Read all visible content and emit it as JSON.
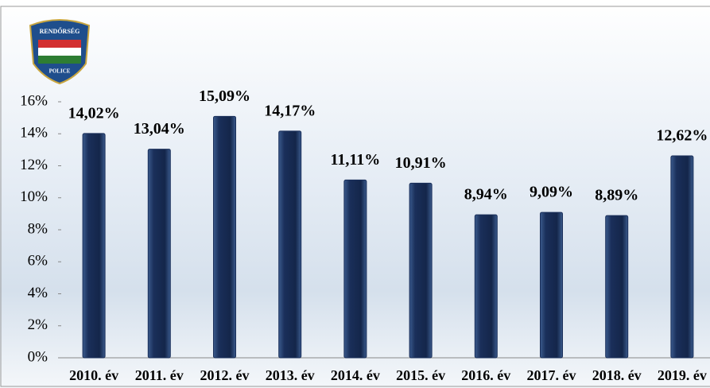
{
  "logo": {
    "top": "RENDŐRSÉG",
    "bottom": "POLICE"
  },
  "chart_data": {
    "type": "bar",
    "categories": [
      "2010. év",
      "2011. év",
      "2012. év",
      "2013. év",
      "2014. év",
      "2015. év",
      "2016. év",
      "2017. év",
      "2018. év",
      "2019. év"
    ],
    "values": [
      14.02,
      13.04,
      15.09,
      14.17,
      11.11,
      10.91,
      8.94,
      9.09,
      8.89,
      12.62
    ],
    "value_labels": [
      "14,02%",
      "13,04%",
      "15,09%",
      "14,17%",
      "11,11%",
      "10,91%",
      "8,94%",
      "9,09%",
      "8,89%",
      "12,62%"
    ],
    "color": "#1a2f5a",
    "ylim": [
      0,
      16
    ],
    "yticks": [
      {
        "value": 0,
        "label": "0%"
      },
      {
        "value": 2,
        "label": "2%"
      },
      {
        "value": 4,
        "label": "4%"
      },
      {
        "value": 6,
        "label": "6%"
      },
      {
        "value": 8,
        "label": "8%"
      },
      {
        "value": 10,
        "label": "10%"
      },
      {
        "value": 12,
        "label": "12%"
      },
      {
        "value": 14,
        "label": "14%"
      },
      {
        "value": 16,
        "label": "16%"
      }
    ],
    "grid": false
  }
}
